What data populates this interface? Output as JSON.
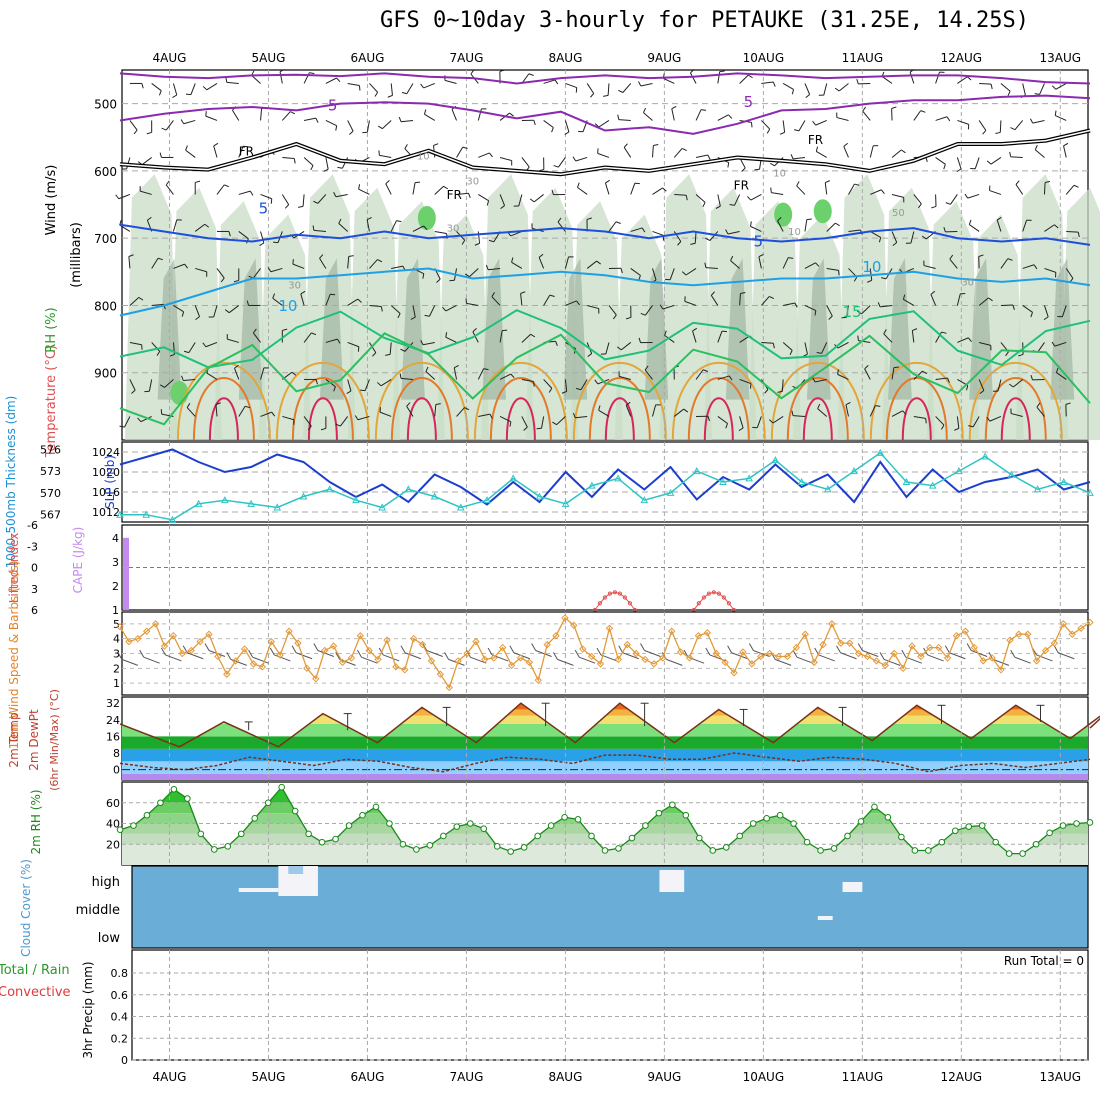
{
  "title": "GFS 0~10day 3-hourly for PETAUKE (31.25E, 14.25S)",
  "chart_data": {
    "type": "meteogram",
    "dates": [
      "4AUG",
      "5AUG",
      "6AUG",
      "7AUG",
      "8AUG",
      "9AUG",
      "10AUG",
      "11AUG",
      "12AUG",
      "13AUG"
    ],
    "upper_air": {
      "ylabel": "(millibars)",
      "left_labels": [
        "Wind (m/s)",
        "Temperature (°C)",
        "RH (%)"
      ],
      "yticks": [
        500,
        600,
        700,
        800,
        900
      ],
      "ylim": [
        1000,
        450
      ],
      "contour_labels": {
        "wind": [
          "5",
          "5"
        ],
        "freezing": [
          "FR",
          "FR",
          "FR",
          "FR"
        ],
        "temperature": [
          "5",
          "5",
          "10",
          "10",
          "15"
        ],
        "rh": [
          "10",
          "30",
          "10",
          "30",
          "50",
          "10",
          "30",
          "30"
        ]
      },
      "freezing_level_mb": [
        590,
        595,
        598,
        580,
        560,
        585,
        590,
        570,
        595,
        600,
        605,
        595,
        600,
        590,
        580,
        585,
        590,
        600,
        585,
        560,
        560,
        555,
        540
      ],
      "temp_5C_mb": [
        680,
        690,
        700,
        705,
        695,
        700,
        690,
        700,
        695,
        690,
        685,
        690,
        700,
        690,
        700,
        705,
        700,
        690,
        685,
        700,
        705,
        700,
        710
      ],
      "temp_10C_mb": [
        815,
        800,
        780,
        760,
        760,
        755,
        750,
        745,
        760,
        755,
        750,
        755,
        765,
        770,
        765,
        760,
        760,
        755,
        750,
        760,
        765,
        760,
        770
      ]
    },
    "thickness_slp": {
      "left_labels": [
        "1000-500mb Thickness (dm)",
        "SLP (mb)"
      ],
      "thickness_ticks": [
        567,
        570,
        573,
        576
      ],
      "slp_ticks": [
        1012,
        1016,
        1020,
        1024
      ],
      "slp_mb": [
        1021.5,
        1023.0,
        1024.5,
        1022.0,
        1020.0,
        1021.0,
        1023.5,
        1022.0,
        1018.0,
        1015.0,
        1017.5,
        1014.0,
        1019.5,
        1017.0,
        1013.5,
        1018.0,
        1014.0,
        1020.0,
        1015.0,
        1020.5,
        1016.5,
        1021.0,
        1014.5,
        1019.0,
        1016.5,
        1021.5,
        1017.0,
        1019.5,
        1014.0,
        1022.0,
        1015.0,
        1020.5,
        1016.0,
        1018.0,
        1019.0,
        1020.5,
        1016.5,
        1018.0
      ],
      "thickness_dm": [
        567.0,
        567.0,
        566.3,
        568.5,
        569.0,
        568.5,
        568.0,
        569.5,
        570.5,
        569.0,
        568.0,
        570.5,
        569.5,
        568.0,
        569.0,
        572.0,
        569.5,
        568.5,
        571.0,
        572.0,
        569.0,
        570.0,
        573.0,
        571.5,
        572.0,
        574.5,
        571.5,
        570.5,
        573.0,
        575.5,
        571.5,
        571.0,
        573.0,
        575.0,
        572.5,
        570.5,
        571.5,
        570.0
      ]
    },
    "cape_li": {
      "left_labels": [
        "Lifted Index",
        "CAPE (J/kg)"
      ],
      "li_ticks": [
        "6",
        "3",
        "0",
        "-3",
        "-6"
      ],
      "cape_ticks": [
        "1",
        "2",
        "3",
        "4"
      ],
      "cape_bar": {
        "day": 3.5,
        "value": 4.0
      },
      "li_bumps": [
        {
          "day": 8.5,
          "value": -3.5
        },
        {
          "day": 9.5,
          "value": -3.5
        }
      ]
    },
    "wind10m": {
      "left_labels": [
        "10m Wind Speed & Barbs (m/s)"
      ],
      "yticks": [
        1,
        2,
        3,
        4,
        5
      ],
      "speed_ms": [
        4.8,
        3.8,
        4.0,
        4.5,
        5.0,
        3.5,
        4.2,
        3.0,
        3.2,
        3.8,
        4.3,
        2.8,
        1.6,
        2.5,
        3.3,
        2.3,
        2.1,
        3.8,
        2.9,
        4.5,
        3.7,
        2.0,
        1.3,
        3.2,
        3.5,
        2.4,
        2.7,
        4.2,
        3.2,
        2.6,
        3.9,
        2.1,
        1.9,
        4.0,
        3.6,
        2.5,
        1.6,
        0.7,
        2.5,
        3.0,
        3.8,
        2.6,
        2.7,
        3.4,
        2.2,
        2.7,
        2.4,
        1.2,
        3.6,
        4.2,
        5.4,
        4.9,
        3.3,
        2.8,
        2.3,
        4.7,
        2.6,
        3.6,
        3.0,
        2.6,
        2.3,
        2.7,
        4.5,
        3.1,
        2.7,
        4.2,
        4.4,
        3.0,
        2.4,
        1.7,
        3.1,
        2.3,
        2.8,
        3.0,
        2.8,
        2.8,
        3.4,
        4.3,
        2.4,
        3.6,
        5.0,
        3.7,
        3.7,
        3.0,
        2.8,
        2.5,
        2.2,
        3.0,
        2.0,
        3.5,
        2.8,
        3.4,
        3.4,
        2.7,
        4.2,
        4.5,
        3.4,
        2.5,
        2.7,
        1.9,
        3.9,
        4.3,
        4.3,
        2.5,
        3.2,
        3.7,
        5.0,
        4.3,
        4.7,
        5.1
      ]
    },
    "temp2m": {
      "left_labels": [
        "2m Temp",
        "2m DewPt",
        "(6hr Min/Max) (°C)"
      ],
      "yticks": [
        0,
        8,
        16,
        24,
        32
      ],
      "temp_daily": [
        {
          "min": 11,
          "max": 23
        },
        {
          "min": 11,
          "max": 27
        },
        {
          "min": 13,
          "max": 30
        },
        {
          "min": 13,
          "max": 32
        },
        {
          "min": 13,
          "max": 32
        },
        {
          "min": 13,
          "max": 29
        },
        {
          "min": 13,
          "max": 30
        },
        {
          "min": 14,
          "max": 31
        },
        {
          "min": 15,
          "max": 31
        },
        {
          "min": 15,
          "max": 31
        }
      ],
      "dewpt": [
        3,
        1,
        0,
        2,
        6,
        4,
        2,
        5,
        4,
        1,
        -1,
        3,
        6,
        5,
        3,
        7,
        7,
        5,
        5,
        8,
        6,
        4,
        6,
        5,
        3,
        -1,
        2,
        3,
        1,
        3,
        5
      ]
    },
    "rh2m": {
      "left_labels": [
        "2m RH (%)"
      ],
      "yticks": [
        20,
        40,
        60
      ],
      "rh_pct": [
        34,
        38,
        48,
        60,
        73,
        64,
        30,
        15,
        18,
        30,
        45,
        60,
        75,
        52,
        30,
        22,
        25,
        38,
        48,
        56,
        40,
        20,
        15,
        19,
        28,
        37,
        40,
        35,
        18,
        13,
        17,
        28,
        38,
        46,
        44,
        28,
        14,
        16,
        26,
        38,
        50,
        58,
        48,
        26,
        14,
        17,
        28,
        40,
        45,
        48,
        40,
        22,
        14,
        16,
        28,
        42,
        56,
        46,
        27,
        14,
        14,
        22,
        33,
        37,
        38,
        22,
        11,
        11,
        20,
        31,
        38,
        40,
        41
      ]
    },
    "cloud": {
      "left_labels": [
        "Cloud Cover (%)"
      ],
      "levels": [
        "high",
        "middle",
        "low"
      ],
      "cover": "near overcast (bars show small breaks)"
    },
    "precip": {
      "left_labels": [
        "Total / Rain",
        "Convective",
        "3hr Precip (mm)"
      ],
      "yticks": [
        0,
        0.2,
        0.4,
        0.6,
        0.8
      ],
      "run_total_label": "Run Total = 0",
      "values_mm": []
    }
  }
}
